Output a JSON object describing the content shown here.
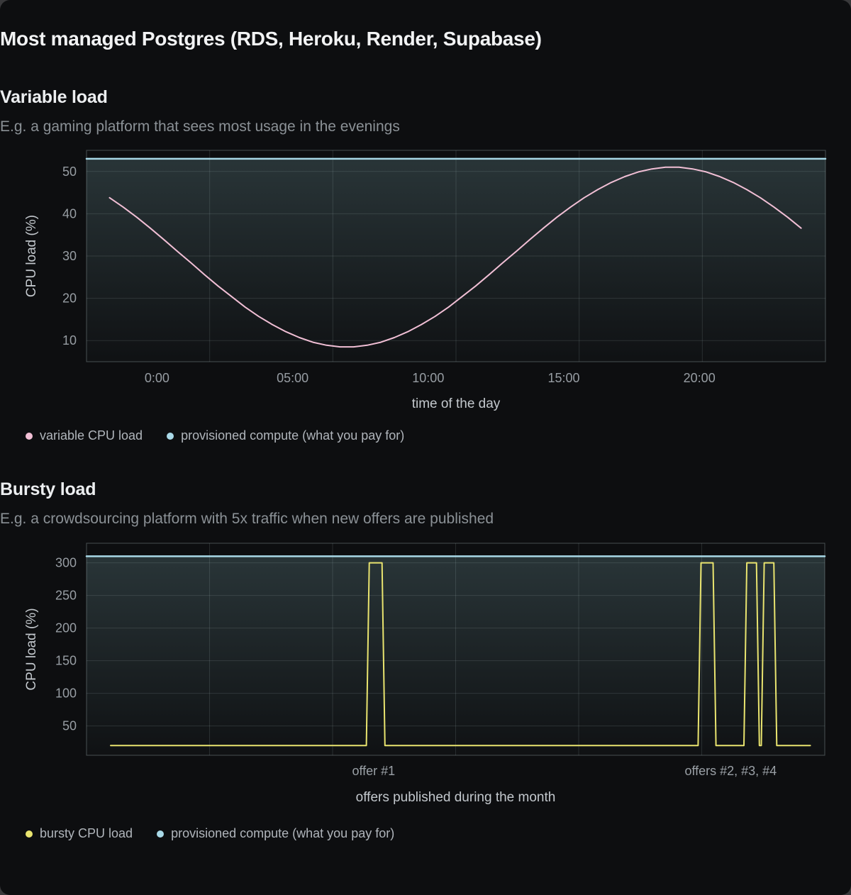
{
  "page": {
    "title": "Most managed Postgres (RDS, Heroku, Render, Supabase)",
    "background": "#39393b",
    "card_background": "#0d0e10",
    "theme": {
      "grid_color": "rgba(205,228,232,0.13)",
      "border_color": "rgba(205,228,232,0.30)",
      "tick_text_color": "#979da3",
      "axis_text_color": "#c3c8cd",
      "annotation_text_color": "#9aa0a6",
      "area_fill_top": "rgba(140,190,196,0.22)",
      "area_fill_bottom": "rgba(140,190,196,0.02)"
    }
  },
  "chart_data": [
    {
      "type": "line",
      "title": "Variable load",
      "subtitle": "E.g. a gaming platform that sees most usage in the evenings",
      "xlabel": "time of the day",
      "ylabel": "CPU load (%)",
      "xlim": [
        -2.6,
        24.65
      ],
      "ylim": [
        5,
        55
      ],
      "grid": "horizontal at y ticks; 5 evenly spaced unlabeled vertical divisions; full border",
      "legend_position": "bottom-left",
      "x_ticks": [
        {
          "value": 0,
          "label": "0:00"
        },
        {
          "value": 5,
          "label": "05:00"
        },
        {
          "value": 10,
          "label": "10:00"
        },
        {
          "value": 15,
          "label": "15:00"
        },
        {
          "value": 20,
          "label": "20:00"
        }
      ],
      "y_ticks": [
        10,
        20,
        30,
        40,
        50
      ],
      "annotations": [],
      "series": [
        {
          "name": "variable CPU load",
          "color": "#f1bfd5",
          "width": 2,
          "area_fill": false,
          "points": [
            [
              -1.75,
              43.8
            ],
            [
              -1.25,
              41.6
            ],
            [
              -0.75,
              39.2
            ],
            [
              -0.25,
              36.6
            ],
            [
              0.25,
              33.9
            ],
            [
              0.75,
              31.1
            ],
            [
              1.25,
              28.4
            ],
            [
              1.75,
              25.6
            ],
            [
              2.25,
              22.9
            ],
            [
              2.75,
              20.4
            ],
            [
              3.25,
              17.9
            ],
            [
              3.75,
              15.7
            ],
            [
              4.25,
              13.8
            ],
            [
              4.75,
              12.1
            ],
            [
              5.25,
              10.7
            ],
            [
              5.75,
              9.6
            ],
            [
              6.25,
              8.9
            ],
            [
              6.75,
              8.5
            ],
            [
              7.25,
              8.5
            ],
            [
              7.75,
              8.9
            ],
            [
              8.25,
              9.6
            ],
            [
              8.75,
              10.7
            ],
            [
              9.25,
              12.1
            ],
            [
              9.75,
              13.8
            ],
            [
              10.25,
              15.7
            ],
            [
              10.75,
              17.9
            ],
            [
              11.25,
              20.4
            ],
            [
              11.75,
              22.9
            ],
            [
              12.25,
              25.6
            ],
            [
              12.75,
              28.4
            ],
            [
              13.25,
              31.1
            ],
            [
              13.75,
              33.9
            ],
            [
              14.25,
              36.6
            ],
            [
              14.75,
              39.2
            ],
            [
              15.25,
              41.6
            ],
            [
              15.75,
              43.8
            ],
            [
              16.25,
              45.7
            ],
            [
              16.75,
              47.4
            ],
            [
              17.25,
              48.8
            ],
            [
              17.75,
              49.9
            ],
            [
              18.25,
              50.6
            ],
            [
              18.75,
              51.0
            ],
            [
              19.25,
              51.0
            ],
            [
              19.75,
              50.6
            ],
            [
              20.25,
              49.9
            ],
            [
              20.75,
              48.8
            ],
            [
              21.25,
              47.4
            ],
            [
              21.75,
              45.7
            ],
            [
              22.25,
              43.8
            ],
            [
              22.75,
              41.6
            ],
            [
              23.25,
              39.2
            ],
            [
              23.75,
              36.6
            ]
          ]
        },
        {
          "name": "provisioned compute (what you pay for)",
          "color": "#a9d9e8",
          "width": 2.5,
          "area_fill": true,
          "points": [
            [
              -2.6,
              53
            ],
            [
              24.65,
              53
            ]
          ]
        }
      ]
    },
    {
      "type": "line",
      "title": "Bursty load",
      "subtitle": "E.g. a crowdsourcing platform with 5x traffic when new offers are published",
      "xlabel": "offers published during the month",
      "ylabel": "CPU load (%)",
      "xlim": [
        0,
        30.6
      ],
      "ylim": [
        5,
        330
      ],
      "grid": "horizontal at y ticks; 5 evenly spaced unlabeled vertical divisions; full border",
      "legend_position": "bottom-left",
      "x_ticks": [],
      "y_ticks": [
        50,
        100,
        150,
        200,
        250,
        300
      ],
      "annotations": [
        {
          "x": 11.9,
          "label": "offer #1"
        },
        {
          "x": 26.7,
          "label": "offers #2, #3, #4"
        }
      ],
      "series": [
        {
          "name": "bursty CPU load",
          "color": "#e9e46f",
          "width": 2,
          "area_fill": false,
          "points": [
            [
              1,
              20
            ],
            [
              11.6,
              20
            ],
            [
              11.72,
              300
            ],
            [
              12.25,
              300
            ],
            [
              12.37,
              20
            ],
            [
              25.35,
              20
            ],
            [
              25.47,
              300
            ],
            [
              25.97,
              300
            ],
            [
              26.09,
              20
            ],
            [
              27.25,
              20
            ],
            [
              27.37,
              300
            ],
            [
              27.77,
              300
            ],
            [
              27.89,
              20
            ],
            [
              27.97,
              20
            ],
            [
              28.09,
              300
            ],
            [
              28.49,
              300
            ],
            [
              28.61,
              20
            ],
            [
              30,
              20
            ]
          ]
        },
        {
          "name": "provisioned compute (what you pay for)",
          "color": "#a9d9e8",
          "width": 2.5,
          "area_fill": true,
          "points": [
            [
              0,
              310
            ],
            [
              30.6,
              310
            ]
          ]
        }
      ]
    }
  ]
}
